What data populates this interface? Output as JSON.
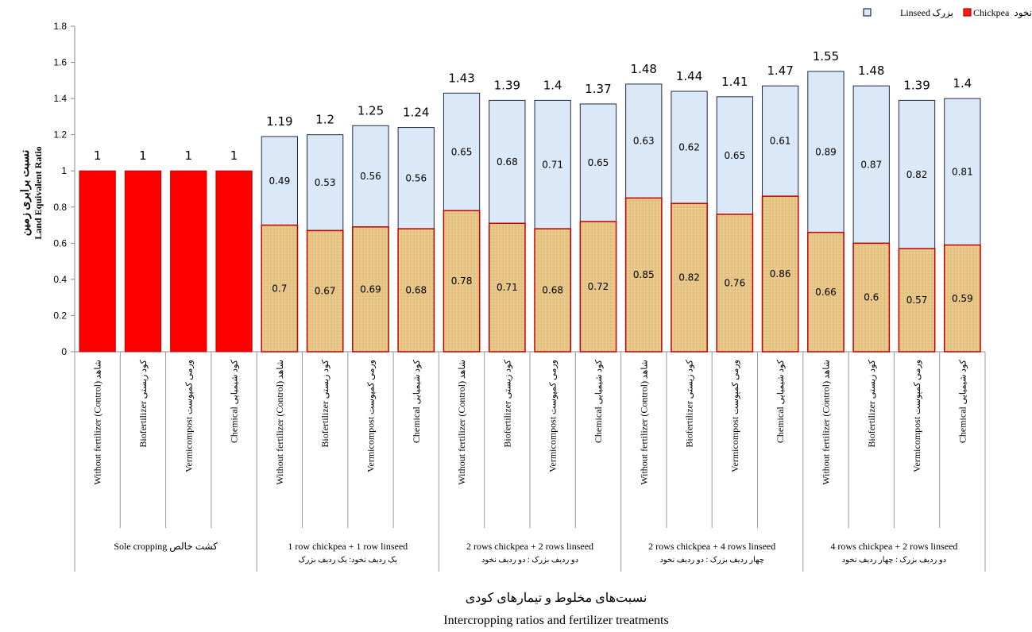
{
  "chart_data": {
    "type": "bar",
    "stacked": true,
    "xlabel_fa": "نسبت‌های مخلوط و تیمارهای کودی",
    "xlabel_en": "Intercropping ratios and fertilizer treatments",
    "ylabel_fa": "نسبت برابری زمین",
    "ylabel_en": "Land Equivalent Ratio",
    "ylim": [
      0,
      1.8
    ],
    "yticks": [
      "0",
      "0.2",
      "0.4",
      "0.6",
      "0.8",
      "1",
      "1.2",
      "1.4",
      "1.6",
      "1.8"
    ],
    "legend": [
      {
        "text_en": "Linseed",
        "text_fa": "بزرک",
        "color": "#dbe8f7",
        "border": "#1f2a44"
      },
      {
        "text_en": "Chickpea",
        "text_fa": "نخود",
        "color": "#ff1a1a",
        "border": "#b00000"
      }
    ],
    "legend_position": "top-right",
    "colors": {
      "sole": "#ff0000",
      "chickpea_fill": "#e8c887",
      "linseed_fill": "#dbe8f7",
      "bar_border": "#c00000",
      "linseed_border": "#1f2a44"
    },
    "groups": [
      {
        "label_en": "Sole cropping",
        "label_fa": "کشت خالص",
        "sub_fa": ""
      },
      {
        "label_en": "1 row chickpea + 1 row linseed",
        "label_fa": "",
        "sub_fa": "یک ردیف نخود: یک ردیف بزرک"
      },
      {
        "label_en": "2 rows chickpea + 2 rows  linseed",
        "label_fa": "",
        "sub_fa": "دو ردیف بزرک : دو ردیف نخود"
      },
      {
        "label_en": "2 rows chickpea + 4 rows linseed",
        "label_fa": "",
        "sub_fa": "چهار ردیف بزرک : دو ردیف نخود"
      },
      {
        "label_en": "4 rows chickpea + 2 rows linseed",
        "label_fa": "",
        "sub_fa": "دو ردیف بزرک : چهار ردیف نخود"
      }
    ],
    "categories": [
      {
        "en": "Without fertilizer  (Control)",
        "fa": "شاهد"
      },
      {
        "en": "Biofertilizer",
        "fa": "کود زیستی"
      },
      {
        "en": "Vermicompost",
        "fa": "ورمی کمپوست"
      },
      {
        "en": "Chemical",
        "fa": "کود شیمیایی"
      }
    ],
    "bars": [
      {
        "group": 0,
        "cat": 0,
        "chickpea": 1,
        "linseed": 0,
        "total": "1",
        "sole": true,
        "chickpea_label": "",
        "linseed_label": ""
      },
      {
        "group": 0,
        "cat": 1,
        "chickpea": 1,
        "linseed": 0,
        "total": "1",
        "sole": true,
        "chickpea_label": "",
        "linseed_label": ""
      },
      {
        "group": 0,
        "cat": 2,
        "chickpea": 1,
        "linseed": 0,
        "total": "1",
        "sole": true,
        "chickpea_label": "",
        "linseed_label": ""
      },
      {
        "group": 0,
        "cat": 3,
        "chickpea": 1,
        "linseed": 0,
        "total": "1",
        "sole": true,
        "chickpea_label": "",
        "linseed_label": ""
      },
      {
        "group": 1,
        "cat": 0,
        "chickpea": 0.7,
        "linseed": 0.49,
        "total": "1.19",
        "chickpea_label": "0.7",
        "linseed_label": "0.49"
      },
      {
        "group": 1,
        "cat": 1,
        "chickpea": 0.67,
        "linseed": 0.53,
        "total": "1.2",
        "chickpea_label": "0.67",
        "linseed_label": "0.53"
      },
      {
        "group": 1,
        "cat": 2,
        "chickpea": 0.69,
        "linseed": 0.56,
        "total": "1.25",
        "chickpea_label": "0.69",
        "linseed_label": "0.56"
      },
      {
        "group": 1,
        "cat": 3,
        "chickpea": 0.68,
        "linseed": 0.56,
        "total": "1.24",
        "chickpea_label": "0.68",
        "linseed_label": "0.56"
      },
      {
        "group": 2,
        "cat": 0,
        "chickpea": 0.78,
        "linseed": 0.65,
        "total": "1.43",
        "chickpea_label": "0.78",
        "linseed_label": "0.65"
      },
      {
        "group": 2,
        "cat": 1,
        "chickpea": 0.71,
        "linseed": 0.68,
        "total": "1.39",
        "chickpea_label": "0.71",
        "linseed_label": "0.68"
      },
      {
        "group": 2,
        "cat": 2,
        "chickpea": 0.68,
        "linseed": 0.71,
        "total": "1.4",
        "chickpea_label": "0.68",
        "linseed_label": "0.71"
      },
      {
        "group": 2,
        "cat": 3,
        "chickpea": 0.72,
        "linseed": 0.65,
        "total": "1.37",
        "chickpea_label": "0.72",
        "linseed_label": "0.65"
      },
      {
        "group": 3,
        "cat": 0,
        "chickpea": 0.85,
        "linseed": 0.63,
        "total": "1.48",
        "chickpea_label": "0.85",
        "linseed_label": "0.63"
      },
      {
        "group": 3,
        "cat": 1,
        "chickpea": 0.82,
        "linseed": 0.62,
        "total": "1.44",
        "chickpea_label": "0.82",
        "linseed_label": "0.62"
      },
      {
        "group": 3,
        "cat": 2,
        "chickpea": 0.76,
        "linseed": 0.65,
        "total": "1.41",
        "chickpea_label": "0.76",
        "linseed_label": "0.65"
      },
      {
        "group": 3,
        "cat": 3,
        "chickpea": 0.86,
        "linseed": 0.61,
        "total": "1.47",
        "chickpea_label": "0.86",
        "linseed_label": "0.61"
      },
      {
        "group": 4,
        "cat": 0,
        "chickpea": 0.66,
        "linseed": 0.89,
        "total": "1.55",
        "chickpea_label": "0.66",
        "linseed_label": "0.89"
      },
      {
        "group": 4,
        "cat": 1,
        "chickpea": 0.6,
        "linseed": 0.87,
        "total": "1.48",
        "chickpea_label": "0.6",
        "linseed_label": "0.87"
      },
      {
        "group": 4,
        "cat": 2,
        "chickpea": 0.57,
        "linseed": 0.82,
        "total": "1.39",
        "chickpea_label": "0.57",
        "linseed_label": "0.82"
      },
      {
        "group": 4,
        "cat": 3,
        "chickpea": 0.59,
        "linseed": 0.81,
        "total": "1.4",
        "chickpea_label": "0.59",
        "linseed_label": "0.81"
      }
    ]
  }
}
